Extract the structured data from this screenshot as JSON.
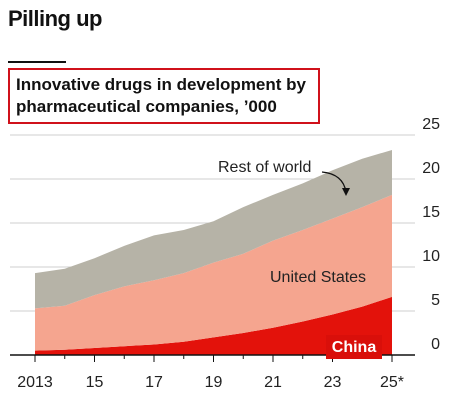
{
  "chart_data": {
    "type": "stacked_area",
    "title": "Pilling up",
    "subtitle": "Innovative drugs in development by pharmaceutical companies, ’000",
    "categories": [
      "2013",
      null,
      "15",
      null,
      "17",
      null,
      "19",
      null,
      "21",
      null,
      "23",
      null,
      "25*"
    ],
    "series": [
      {
        "name": "China",
        "color": "#e3120b",
        "values": [
          0.5,
          0.6,
          0.8,
          1.0,
          1.2,
          1.5,
          2.0,
          2.5,
          3.1,
          3.8,
          4.6,
          5.5,
          6.6
        ]
      },
      {
        "name": "United States",
        "color": "#f5a58f",
        "values": [
          4.8,
          5.0,
          6.0,
          6.8,
          7.3,
          7.8,
          8.5,
          9.0,
          9.9,
          10.4,
          10.9,
          11.3,
          11.6
        ]
      },
      {
        "name": "Rest of world",
        "color": "#b6b3a7",
        "values": [
          4.0,
          4.2,
          4.2,
          4.6,
          5.1,
          4.9,
          4.7,
          5.3,
          5.2,
          5.3,
          5.5,
          5.5,
          5.1
        ]
      }
    ],
    "ylim": [
      0,
      25
    ],
    "yticks": [
      0,
      5,
      10,
      15,
      20,
      25
    ],
    "grid": true
  }
}
